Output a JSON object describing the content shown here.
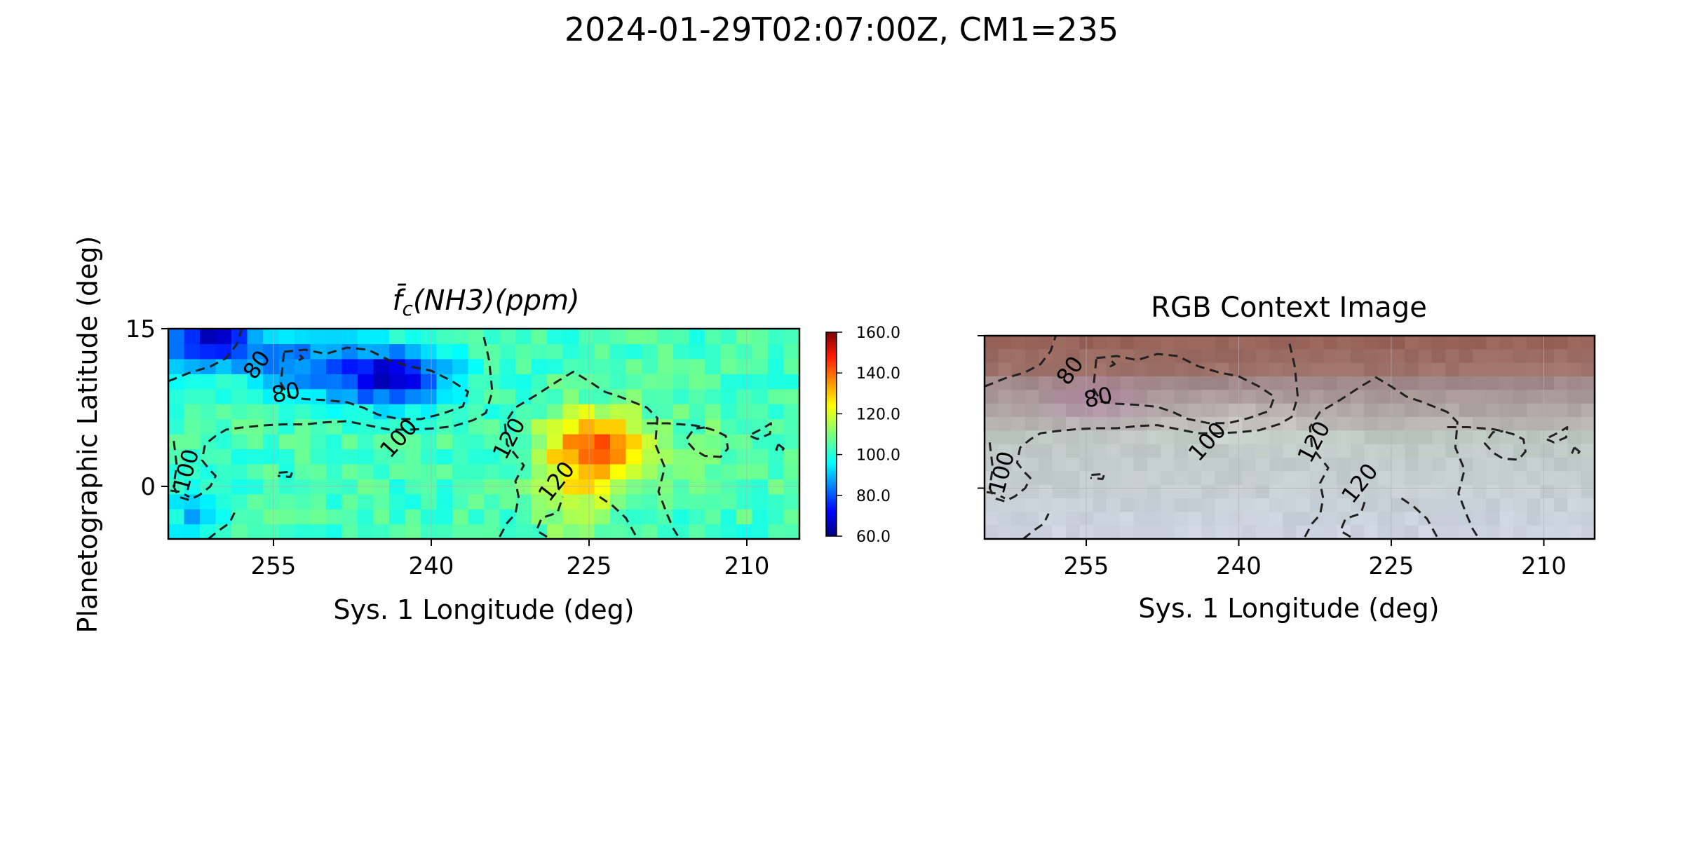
{
  "figure": {
    "title": "2024-01-29T02:07:00Z, CM1=235"
  },
  "chart_data": [
    {
      "type": "heatmap",
      "title_main": "f̄",
      "title_sub": "c",
      "title_rest": "(NH3)(ppm)",
      "xlabel": "Sys. 1 Longitude (deg)",
      "ylabel": "Planetographic Latitude (deg)",
      "xlim": [
        265,
        205
      ],
      "ylim": [
        -5,
        15
      ],
      "x_ticks": [
        255,
        240,
        225,
        210
      ],
      "y_ticks": [
        15,
        0
      ],
      "grid": true,
      "colormap": "jet",
      "colorbar": {
        "range": [
          60,
          160
        ],
        "ticks": [
          "160.0",
          "140.0",
          "120.0",
          "100.0",
          "80.0",
          "60.0"
        ],
        "tick_values": [
          160,
          140,
          120,
          100,
          80,
          60
        ]
      },
      "contour_levels": [
        80,
        100,
        120
      ],
      "contour_labels": [
        {
          "text": "80",
          "x": 256.5,
          "y": 11.5,
          "rotate": -55
        },
        {
          "text": "80",
          "x": 253.8,
          "y": 8.8,
          "rotate": -12
        },
        {
          "text": "100",
          "x": 243.0,
          "y": 4.5,
          "rotate": -48
        },
        {
          "text": "100",
          "x": 263.2,
          "y": 1.5,
          "rotate": -75
        },
        {
          "text": "120",
          "x": 232.5,
          "y": 4.5,
          "rotate": -62
        },
        {
          "text": "120",
          "x": 228.0,
          "y": 0.4,
          "rotate": -52
        }
      ],
      "contours": [
        [
          [
            254,
            12.8
          ],
          [
            252,
            13.0
          ],
          [
            250,
            12.6
          ],
          [
            248,
            13.2
          ],
          [
            246,
            13.0
          ],
          [
            244,
            12.0
          ],
          [
            242,
            11.4
          ],
          [
            240,
            11.0
          ],
          [
            238,
            10.0
          ],
          [
            236.5,
            9.0
          ],
          [
            237,
            7.6
          ],
          [
            239,
            6.9
          ],
          [
            241,
            6.4
          ],
          [
            243,
            6.4
          ],
          [
            245,
            6.8
          ],
          [
            246.5,
            7.5
          ],
          [
            248,
            8.0
          ],
          [
            250,
            8.2
          ],
          [
            252,
            8.3
          ],
          [
            253.5,
            8.5
          ],
          [
            254.3,
            9.8
          ],
          [
            254,
            12.8
          ]
        ],
        [
          [
            265,
            10.0
          ],
          [
            263,
            10.8
          ],
          [
            261,
            11.4
          ],
          [
            259.5,
            12.2
          ],
          [
            258.5,
            13.5
          ],
          [
            258,
            15
          ]
        ],
        [
          [
            235,
            14.2
          ],
          [
            234.5,
            12.0
          ],
          [
            234.2,
            9.0
          ],
          [
            234.8,
            7.0
          ],
          [
            236,
            6.3
          ],
          [
            238,
            5.7
          ],
          [
            240,
            5.5
          ],
          [
            242,
            5.4
          ],
          [
            244,
            5.4
          ],
          [
            246,
            5.8
          ],
          [
            248,
            6.2
          ],
          [
            250,
            6.1
          ],
          [
            252,
            5.9
          ],
          [
            254,
            5.9
          ],
          [
            256,
            5.8
          ],
          [
            258,
            5.6
          ],
          [
            259.5,
            5.4
          ],
          [
            260.5,
            4.8
          ],
          [
            261.5,
            4.0
          ],
          [
            261.8,
            2.5
          ],
          [
            261,
            1.5
          ],
          [
            260.5,
            1.0
          ],
          [
            261,
            0
          ],
          [
            262,
            -0.8
          ],
          [
            263,
            -1.3
          ],
          [
            264,
            -1.0
          ],
          [
            264.5,
            0
          ],
          [
            264.2,
            2.0
          ],
          [
            264.5,
            4.5
          ]
        ],
        [
          [
            233.5,
            -4.8
          ],
          [
            232.8,
            -3.5
          ],
          [
            232.0,
            -2.6
          ],
          [
            231.7,
            -1.0
          ],
          [
            232.0,
            0.5
          ],
          [
            231.2,
            2.0
          ],
          [
            232.8,
            4.0
          ],
          [
            233.0,
            6.0
          ],
          [
            232.0,
            7.5
          ],
          [
            230.0,
            8.7
          ],
          [
            228.0,
            10.0
          ],
          [
            226.5,
            10.9
          ],
          [
            225.0,
            10.0
          ],
          [
            223.5,
            9.0
          ],
          [
            222.0,
            8.5
          ],
          [
            219.5,
            7.5
          ],
          [
            218.5,
            6.5
          ],
          [
            218.7,
            4.0
          ],
          [
            217.8,
            1.8
          ],
          [
            218.4,
            -0.5
          ],
          [
            217.6,
            -2.6
          ],
          [
            217.0,
            -4.0
          ],
          [
            216.5,
            -4.8
          ]
        ],
        [
          [
            229.0,
            -4.8
          ],
          [
            230.0,
            -4.2
          ],
          [
            229.5,
            -3.0
          ],
          [
            228.0,
            -2.5
          ],
          [
            227.5,
            -1.0
          ]
        ],
        [
          [
            224.0,
            -1.0
          ],
          [
            222.8,
            -1.8
          ],
          [
            221.5,
            -3.0
          ],
          [
            220.5,
            -4.8
          ]
        ],
        [
          [
            219.5,
            6.0
          ],
          [
            217.5,
            6.0
          ],
          [
            215.0,
            5.8
          ],
          [
            214.0,
            5.6
          ],
          [
            213.0,
            5.3
          ],
          [
            212.0,
            4.8
          ],
          [
            211.8,
            3.6
          ],
          [
            212.5,
            2.8
          ],
          [
            214,
            2.9
          ],
          [
            215,
            3.5
          ],
          [
            215.8,
            4.4
          ],
          [
            215.0,
            5.5
          ],
          [
            214.0,
            5.6
          ]
        ],
        [
          [
            209.5,
            5.0
          ],
          [
            208.5,
            5.5
          ],
          [
            207.7,
            6.0
          ],
          [
            207.8,
            5.0
          ],
          [
            209.0,
            4.5
          ],
          [
            209.7,
            4.8
          ]
        ],
        [
          [
            207.0,
            4.0
          ],
          [
            206.5,
            3.6
          ],
          [
            206.7,
            3.3
          ],
          [
            207.2,
            3.5
          ],
          [
            207.0,
            4.0
          ]
        ],
        [
          [
            254.5,
            1.3
          ],
          [
            253.2,
            1.4
          ],
          [
            253.4,
            0.9
          ],
          [
            254.6,
            1.0
          ]
        ],
        [
          [
            252.5,
            12.5
          ],
          [
            252.2,
            12.2
          ],
          [
            252.6,
            12.0
          ],
          [
            252.5,
            12.5
          ]
        ],
        [
          [
            261.2,
            -5.0
          ],
          [
            260.2,
            -4.2
          ],
          [
            259.2,
            -3.5
          ],
          [
            258.7,
            -2.5
          ]
        ],
        [
          [
            264.8,
            -0.4
          ],
          [
            264.0,
            -0.5
          ],
          [
            263.0,
            -1.0
          ]
        ]
      ]
    },
    {
      "type": "heatmap",
      "title": "RGB Context Image",
      "xlabel": "Sys. 1 Longitude (deg)",
      "ylabel": "",
      "xlim": [
        265,
        205
      ],
      "ylim": [
        -5,
        15
      ],
      "x_ticks": [
        255,
        240,
        225,
        210
      ],
      "grid": true,
      "contour_levels": [
        80,
        100,
        120
      ],
      "contour_labels": [
        {
          "text": "80",
          "x": 256.5,
          "y": 11.5,
          "rotate": -55
        },
        {
          "text": "80",
          "x": 253.8,
          "y": 8.8,
          "rotate": -12
        },
        {
          "text": "100",
          "x": 243.0,
          "y": 4.5,
          "rotate": -48
        },
        {
          "text": "100",
          "x": 263.2,
          "y": 1.5,
          "rotate": -75
        },
        {
          "text": "120",
          "x": 232.5,
          "y": 4.5,
          "rotate": -62
        },
        {
          "text": "120",
          "x": 228.0,
          "y": 0.4,
          "rotate": -52
        }
      ]
    }
  ]
}
